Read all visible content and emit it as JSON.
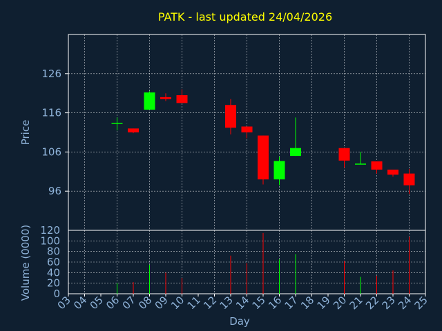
{
  "colors": {
    "background": "#0f1f30",
    "axes": "#ffffff",
    "grid": "#ffffff",
    "text": "#8fb3d9",
    "title": "#ffff00",
    "up": "#00ff00",
    "down": "#ff0000"
  },
  "chart_data": [
    {
      "type": "candlestick",
      "title": "PATK - last updated 24/04/2026",
      "ylabel": "Price",
      "ylim": [
        86,
        136
      ],
      "yticks": [
        96,
        106,
        116,
        126
      ],
      "x": [
        6,
        7,
        8,
        9,
        10,
        13,
        14,
        15,
        16,
        17,
        20,
        21,
        22,
        23,
        24
      ],
      "open": [
        113.3,
        112.0,
        116.8,
        120.0,
        120.5,
        118.0,
        112.5,
        110.2,
        99.0,
        105.0,
        107.0,
        102.9,
        103.6,
        101.5,
        100.5
      ],
      "high": [
        114.8,
        112.0,
        121.5,
        121.0,
        122.0,
        119.5,
        112.5,
        110.2,
        104.8,
        114.8,
        107.0,
        106.0,
        103.6,
        101.5,
        101.7
      ],
      "low": [
        111.5,
        110.8,
        116.8,
        119.0,
        118.5,
        110.5,
        109.5,
        97.7,
        97.5,
        105.0,
        102.0,
        102.9,
        100.5,
        99.7,
        95.3
      ],
      "close": [
        113.3,
        111.0,
        121.2,
        119.5,
        118.5,
        112.2,
        111.0,
        99.0,
        103.7,
        107.0,
        103.8,
        102.9,
        101.5,
        100.2,
        97.5
      ]
    },
    {
      "type": "bar",
      "xlabel": "Day",
      "ylabel": "Volume (0000)",
      "ylim": [
        0,
        120
      ],
      "yticks": [
        0,
        20,
        40,
        60,
        80,
        100,
        120
      ],
      "x": [
        6,
        7,
        8,
        9,
        10,
        13,
        14,
        15,
        16,
        17,
        20,
        21,
        22,
        23,
        24
      ],
      "values": [
        20,
        22,
        55,
        40,
        30,
        72,
        58,
        115,
        65,
        75,
        62,
        32,
        34,
        44,
        108
      ],
      "xticks": [
        "03",
        "04",
        "05",
        "06",
        "07",
        "08",
        "09",
        "10",
        "11",
        "12",
        "13",
        "14",
        "15",
        "16",
        "17",
        "18",
        "19",
        "20",
        "21",
        "22",
        "23",
        "24",
        "25"
      ]
    }
  ]
}
